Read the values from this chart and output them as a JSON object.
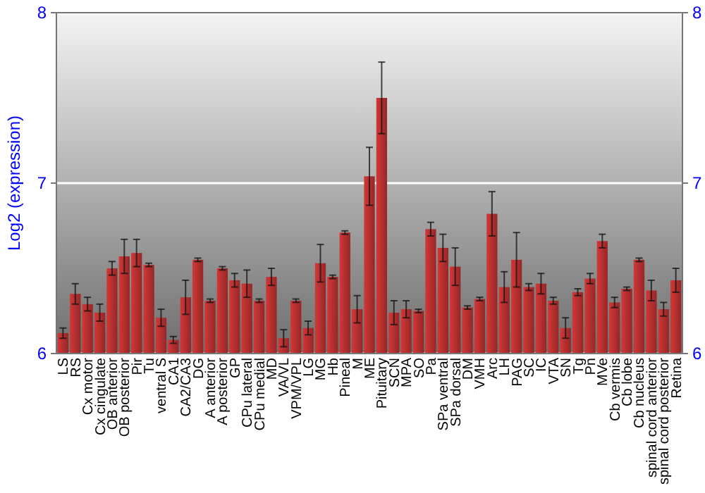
{
  "chart_data": {
    "type": "bar",
    "ylabel": "Log2 (expression)",
    "categories": [
      "LS",
      "RS",
      "Cx motor",
      "Cx cingulate",
      "OB anterior",
      "OB posterior",
      "Pir",
      "Tu",
      "ventral S",
      "CA1",
      "CA2/CA3",
      "DG",
      "A anterior",
      "A posterior",
      "GP",
      "CPu lateral",
      "CPu medial",
      "MD",
      "VA/VL",
      "VPM/VPL",
      "LG",
      "MG",
      "Hb",
      "Pineal",
      "M",
      "ME",
      "Pituitary",
      "SCN",
      "MPA",
      "SO",
      "Pa",
      "SPa ventral",
      "SPa dorsal",
      "DM",
      "VMH",
      "Arc",
      "LH",
      "PAG",
      "SC",
      "IC",
      "VTA",
      "SN",
      "Tg",
      "Pn",
      "MVe",
      "Cb vermis",
      "Cb lobe",
      "Cb nucleus",
      "spinal cord anterior",
      "spinal cord posterior",
      "Retina"
    ],
    "values": [
      6.12,
      6.35,
      6.29,
      6.24,
      6.5,
      6.57,
      6.59,
      6.52,
      6.21,
      6.08,
      6.33,
      6.55,
      6.31,
      6.5,
      6.43,
      6.41,
      6.31,
      6.45,
      6.09,
      6.31,
      6.15,
      6.53,
      6.45,
      6.71,
      6.26,
      7.04,
      7.5,
      6.24,
      6.26,
      6.25,
      6.73,
      6.62,
      6.51,
      6.27,
      6.32,
      6.82,
      6.39,
      6.55,
      6.39,
      6.41,
      6.31,
      6.15,
      6.36,
      6.44,
      6.66,
      6.3,
      6.38,
      6.55,
      6.37,
      6.26,
      6.43
    ],
    "errors": [
      0.03,
      0.06,
      0.04,
      0.05,
      0.04,
      0.1,
      0.08,
      0.01,
      0.05,
      0.02,
      0.1,
      0.01,
      0.01,
      0.01,
      0.04,
      0.08,
      0.01,
      0.05,
      0.05,
      0.01,
      0.04,
      0.11,
      0.01,
      0.01,
      0.08,
      0.17,
      0.21,
      0.07,
      0.05,
      0.01,
      0.04,
      0.08,
      0.11,
      0.01,
      0.01,
      0.13,
      0.09,
      0.16,
      0.02,
      0.06,
      0.02,
      0.06,
      0.02,
      0.03,
      0.04,
      0.03,
      0.01,
      0.01,
      0.06,
      0.04,
      0.07
    ],
    "color": "#b83030",
    "ylim": [
      6,
      8
    ],
    "yticks": [
      6,
      7,
      8
    ],
    "y2lim": [
      6,
      8
    ],
    "y2ticks": [
      6,
      7,
      8
    ],
    "grid": "y"
  }
}
